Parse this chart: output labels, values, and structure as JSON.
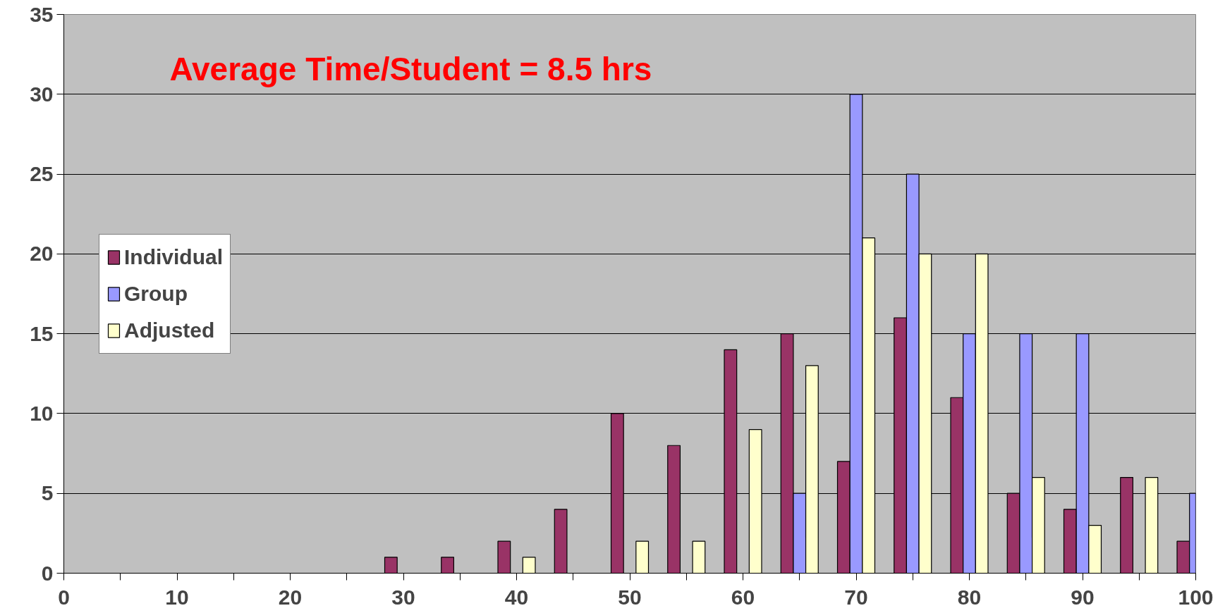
{
  "chart_data": {
    "type": "bar",
    "x": [
      30,
      35,
      40,
      45,
      50,
      55,
      60,
      65,
      70,
      75,
      80,
      85,
      90,
      95,
      100
    ],
    "series": [
      {
        "name": "Individual",
        "color": "#993366",
        "values": [
          1,
          1,
          2,
          4,
          10,
          8,
          14,
          15,
          7,
          16,
          11,
          5,
          4,
          6,
          2
        ]
      },
      {
        "name": "Group",
        "color": "#9999ff",
        "values": [
          null,
          null,
          null,
          null,
          null,
          null,
          null,
          5,
          30,
          25,
          15,
          15,
          15,
          null,
          5
        ]
      },
      {
        "name": "Adjusted",
        "color": "#ffffcc",
        "values": [
          null,
          null,
          1,
          null,
          2,
          2,
          9,
          13,
          21,
          20,
          20,
          6,
          3,
          6,
          null
        ]
      }
    ],
    "xlim": [
      0,
      100
    ],
    "xticks": [
      0,
      {
        "value": 5,
        "label": null
      },
      10,
      {
        "value": 15,
        "label": null
      },
      20,
      {
        "value": 25,
        "label": null
      },
      30,
      {
        "value": 35,
        "label": null
      },
      40,
      {
        "value": 45,
        "label": null
      },
      50,
      {
        "value": 55,
        "label": null
      },
      60,
      {
        "value": 65,
        "label": null
      },
      70,
      {
        "value": 75,
        "label": null
      },
      80,
      {
        "value": 85,
        "label": null
      },
      90,
      {
        "value": 95,
        "label": null
      },
      100
    ],
    "ylim": [
      0,
      35
    ],
    "yticks": [
      0,
      5,
      10,
      15,
      20,
      25,
      30,
      35
    ],
    "grid": "y",
    "legend": "left",
    "annotations": [
      "Average Time/Student = 8.5 hrs"
    ]
  }
}
